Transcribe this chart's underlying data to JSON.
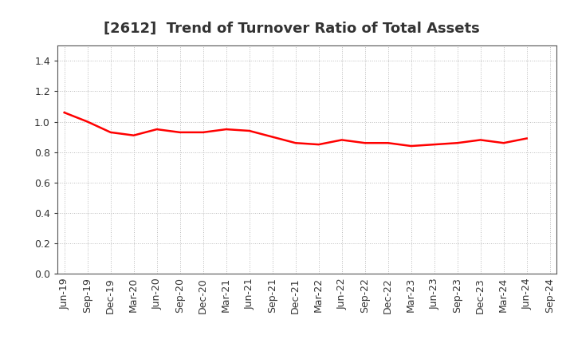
{
  "title": "[2612]  Trend of Turnover Ratio of Total Assets",
  "x_labels": [
    "Jun-19",
    "Sep-19",
    "Dec-19",
    "Mar-20",
    "Jun-20",
    "Sep-20",
    "Dec-20",
    "Mar-21",
    "Jun-21",
    "Sep-21",
    "Dec-21",
    "Mar-22",
    "Jun-22",
    "Sep-22",
    "Dec-22",
    "Mar-23",
    "Jun-23",
    "Sep-23",
    "Dec-23",
    "Mar-24",
    "Jun-24",
    "Sep-24"
  ],
  "values": [
    1.06,
    1.0,
    0.93,
    0.91,
    0.95,
    0.93,
    0.93,
    0.95,
    0.94,
    0.9,
    0.86,
    0.85,
    0.88,
    0.86,
    0.86,
    0.84,
    0.85,
    0.86,
    0.88,
    0.86,
    0.89,
    null
  ],
  "line_color": "#ff0000",
  "line_width": 1.8,
  "background_color": "#ffffff",
  "grid_color": "#bbbbbb",
  "ylim": [
    0.0,
    1.5
  ],
  "yticks": [
    0.0,
    0.2,
    0.4,
    0.6,
    0.8,
    1.0,
    1.2,
    1.4
  ],
  "title_fontsize": 13,
  "tick_fontsize": 9,
  "title_color": "#333333",
  "spine_color": "#555555"
}
